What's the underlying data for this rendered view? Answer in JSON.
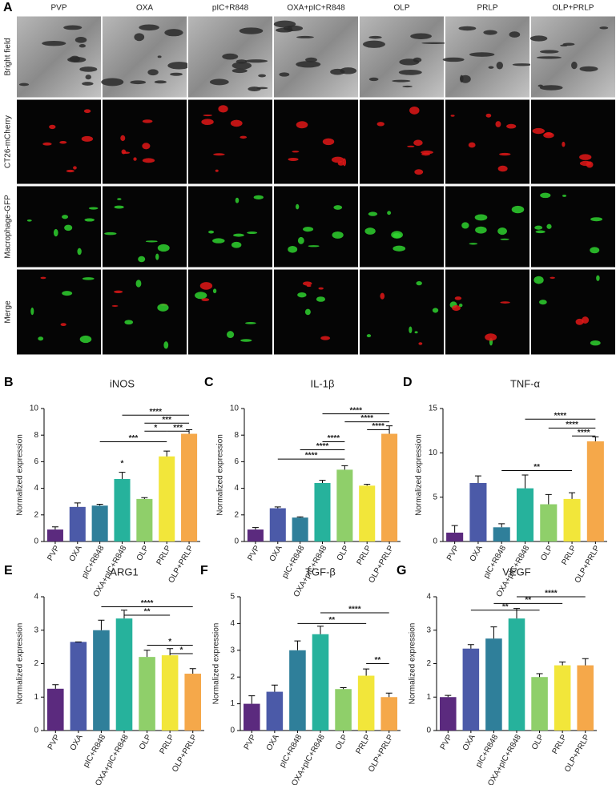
{
  "panel_a": {
    "label": "A",
    "columns": [
      "PVP",
      "OXA",
      "pIC+R848",
      "OXA+pIC+R848",
      "OLP",
      "PRLP",
      "OLP+PRLP"
    ],
    "rows": [
      "Bright field",
      "CT26-mCherry",
      "Macrophage-GFP",
      "Merge"
    ]
  },
  "chart_data": [
    {
      "panel": "B",
      "type": "bar",
      "title": "iNOS",
      "y_label": "Normalized expression",
      "categories": [
        "PVP",
        "OXA",
        "pIC+R848",
        "OXA+pIC+R848",
        "OLP",
        "PRLP",
        "OLP+PRLP"
      ],
      "colors": [
        "#5b2a7e",
        "#4b5aa8",
        "#2f7f9a",
        "#26b29c",
        "#8fcf6a",
        "#f2e63a",
        "#f5a84a"
      ],
      "values": [
        0.9,
        2.6,
        2.7,
        4.7,
        3.2,
        6.4,
        8.1
      ],
      "errors": [
        0.2,
        0.3,
        0.1,
        0.5,
        0.1,
        0.4,
        0.3
      ],
      "ylim": [
        0,
        10
      ],
      "yticks": [
        0,
        2,
        4,
        6,
        8,
        10
      ],
      "annotations": [
        {
          "label": "*",
          "from": 3,
          "to": 3,
          "y": 5.6
        },
        {
          "label": "***",
          "from": 2,
          "to": 5,
          "y": 7.5
        },
        {
          "label": "*",
          "from": 4,
          "to": 5,
          "y": 8.3
        },
        {
          "label": "***",
          "from": 5,
          "to": 6,
          "y": 8.3
        },
        {
          "label": "***",
          "from": 4,
          "to": 6,
          "y": 8.9
        },
        {
          "label": "****",
          "from": 3,
          "to": 6,
          "y": 9.5
        }
      ]
    },
    {
      "panel": "C",
      "type": "bar",
      "title": "IL-1β",
      "y_label": "Normalized expression",
      "categories": [
        "PVP",
        "OXA",
        "pIC+R848",
        "OXA+pIC+R848",
        "OLP",
        "PRLP",
        "OLP+PRLP"
      ],
      "colors": [
        "#5b2a7e",
        "#4b5aa8",
        "#2f7f9a",
        "#26b29c",
        "#8fcf6a",
        "#f2e63a",
        "#f5a84a"
      ],
      "values": [
        0.9,
        2.5,
        1.8,
        4.4,
        5.4,
        4.2,
        8.1
      ],
      "errors": [
        0.15,
        0.1,
        0.05,
        0.2,
        0.3,
        0.1,
        0.6
      ],
      "ylim": [
        0,
        10
      ],
      "yticks": [
        0,
        2,
        4,
        6,
        8,
        10
      ],
      "annotations": [
        {
          "label": "****",
          "from": 1,
          "to": 4,
          "y": 6.2
        },
        {
          "label": "****",
          "from": 2,
          "to": 4,
          "y": 6.9
        },
        {
          "label": "****",
          "from": 3,
          "to": 4,
          "y": 7.5
        },
        {
          "label": "****",
          "from": 5,
          "to": 6,
          "y": 8.4
        },
        {
          "label": "****",
          "from": 4,
          "to": 6,
          "y": 9.0
        },
        {
          "label": "****",
          "from": 3,
          "to": 6,
          "y": 9.6
        }
      ]
    },
    {
      "panel": "D",
      "type": "bar",
      "title": "TNF-α",
      "y_label": "Normalized expression",
      "categories": [
        "PVP",
        "OXA",
        "pIC+R848",
        "OXA+pIC+R848",
        "OLP",
        "PRLP",
        "OLP+PRLP"
      ],
      "colors": [
        "#5b2a7e",
        "#4b5aa8",
        "#2f7f9a",
        "#26b29c",
        "#8fcf6a",
        "#f2e63a",
        "#f5a84a"
      ],
      "values": [
        1.0,
        6.6,
        1.6,
        6.0,
        4.2,
        4.8,
        11.3
      ],
      "errors": [
        0.8,
        0.8,
        0.4,
        1.5,
        1.1,
        0.7,
        0.5
      ],
      "ylim": [
        0,
        15
      ],
      "yticks": [
        0,
        5,
        10,
        15
      ],
      "annotations": [
        {
          "label": "**",
          "from": 2,
          "to": 5,
          "y": 8.0
        },
        {
          "label": "****",
          "from": 5,
          "to": 6,
          "y": 11.9
        },
        {
          "label": "****",
          "from": 4,
          "to": 6,
          "y": 12.8
        },
        {
          "label": "****",
          "from": 3,
          "to": 6,
          "y": 13.8
        }
      ]
    },
    {
      "panel": "E",
      "type": "bar",
      "title": "ARG1",
      "y_label": "Normalized expression",
      "categories": [
        "PVP",
        "OXA",
        "pIC+R848",
        "OXA+pIC+R848",
        "OLP",
        "PRLP",
        "OLP+PRLP"
      ],
      "colors": [
        "#5b2a7e",
        "#4b5aa8",
        "#2f7f9a",
        "#26b29c",
        "#8fcf6a",
        "#f2e63a",
        "#f5a84a"
      ],
      "values": [
        1.25,
        2.65,
        3.0,
        3.35,
        2.2,
        2.25,
        1.7
      ],
      "errors": [
        0.12,
        0,
        0.3,
        0.25,
        0.2,
        0.2,
        0.15
      ],
      "ylim": [
        0,
        4
      ],
      "yticks": [
        0,
        1,
        2,
        3,
        4
      ],
      "annotations": [
        {
          "label": "*",
          "from": 5,
          "to": 6,
          "y": 2.3
        },
        {
          "label": "*",
          "from": 4,
          "to": 6,
          "y": 2.55
        },
        {
          "label": "**",
          "from": 3,
          "to": 5,
          "y": 3.45
        },
        {
          "label": "****",
          "from": 2,
          "to": 6,
          "y": 3.7
        }
      ]
    },
    {
      "panel": "F",
      "type": "bar",
      "title": "TGF-β",
      "y_label": "Normalized expression",
      "categories": [
        "PVP",
        "OXA",
        "pIC+R848",
        "OXA+pIC+R848",
        "OLP",
        "PRLP",
        "OLP+PRLP"
      ],
      "colors": [
        "#5b2a7e",
        "#4b5aa8",
        "#2f7f9a",
        "#26b29c",
        "#8fcf6a",
        "#f2e63a",
        "#f5a84a"
      ],
      "values": [
        1.0,
        1.45,
        3.0,
        3.6,
        1.55,
        2.05,
        1.25
      ],
      "errors": [
        0.3,
        0.25,
        0.35,
        0.3,
        0.05,
        0.25,
        0.15
      ],
      "ylim": [
        0,
        5
      ],
      "yticks": [
        0,
        1,
        2,
        3,
        4,
        5
      ],
      "annotations": [
        {
          "label": "**",
          "from": 5,
          "to": 6,
          "y": 2.5
        },
        {
          "label": "**",
          "from": 2,
          "to": 5,
          "y": 4.0
        },
        {
          "label": "****",
          "from": 3,
          "to": 6,
          "y": 4.4
        }
      ]
    },
    {
      "panel": "G",
      "type": "bar",
      "title": "VEGF",
      "y_label": "Normalized expression",
      "categories": [
        "PVP",
        "OXA",
        "pIC+R848",
        "OXA+pIC+R848",
        "OLP",
        "PRLP",
        "OLP+PRLP"
      ],
      "colors": [
        "#5b2a7e",
        "#4b5aa8",
        "#2f7f9a",
        "#26b29c",
        "#8fcf6a",
        "#f2e63a",
        "#f5a84a"
      ],
      "values": [
        1.0,
        2.45,
        2.75,
        3.35,
        1.6,
        1.95,
        1.95
      ],
      "errors": [
        0.05,
        0.12,
        0.35,
        0.3,
        0.1,
        0.1,
        0.2
      ],
      "ylim": [
        0,
        4
      ],
      "yticks": [
        0,
        1,
        2,
        3,
        4
      ],
      "annotations": [
        {
          "label": "**",
          "from": 1,
          "to": 4,
          "y": 3.6
        },
        {
          "label": "**",
          "from": 2,
          "to": 5,
          "y": 3.8
        },
        {
          "label": "****",
          "from": 3,
          "to": 6,
          "y": 4.0
        }
      ]
    }
  ]
}
